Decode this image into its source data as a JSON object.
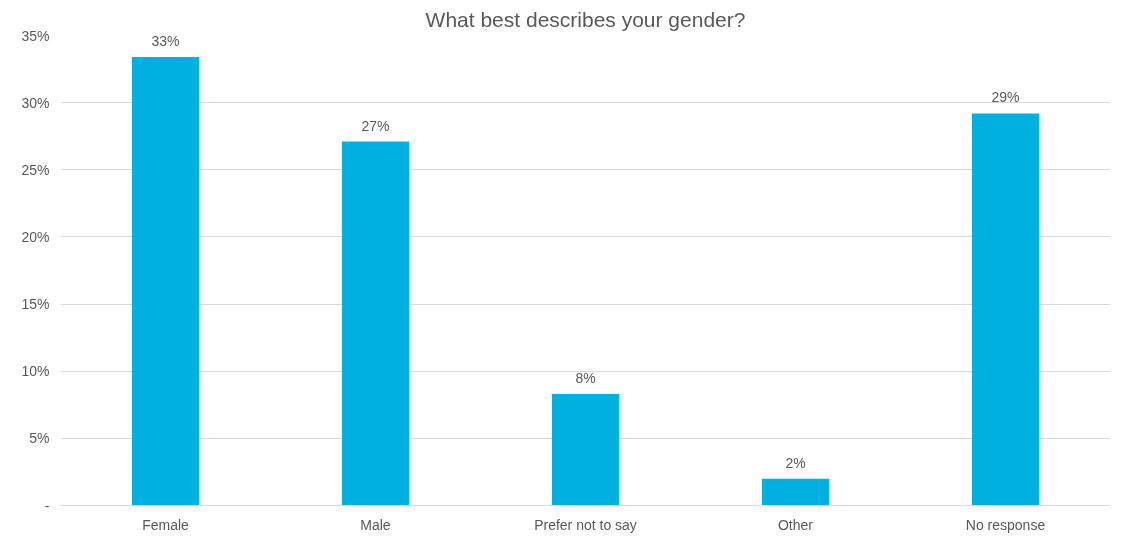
{
  "chart_data": {
    "type": "bar",
    "title": "What best describes your gender?",
    "categories": [
      "Female",
      "Male",
      "Prefer not to say",
      "Other",
      "No response"
    ],
    "values": [
      33.4,
      27.1,
      8.3,
      2.0,
      29.2
    ],
    "value_labels": [
      "33%",
      "27%",
      "8%",
      "2%",
      "29%"
    ],
    "color": "#00b0de",
    "ylim": [
      0,
      35
    ],
    "yticks": [
      {
        "value": 0,
        "label": "-"
      },
      {
        "value": 5,
        "label": "5%"
      },
      {
        "value": 10,
        "label": "10%"
      },
      {
        "value": 15,
        "label": "15%"
      },
      {
        "value": 20,
        "label": "20%"
      },
      {
        "value": 25,
        "label": "25%"
      },
      {
        "value": 30,
        "label": "30%"
      },
      {
        "value": 35,
        "label": "35%"
      }
    ],
    "grid": "y"
  }
}
